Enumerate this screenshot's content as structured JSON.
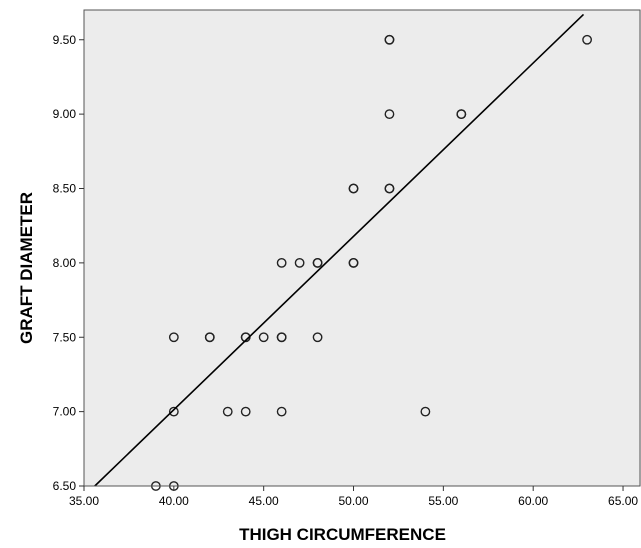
{
  "chart_data": {
    "type": "scatter",
    "title": "",
    "xlabel": "THIGH CIRCUMFERENCE",
    "ylabel": "GRAFT DIAMETER",
    "xlim": [
      35,
      66
    ],
    "ylim": [
      6.5,
      9.7
    ],
    "x_ticks": [
      "35.00",
      "40.00",
      "45.00",
      "50.00",
      "55.00",
      "60.00",
      "65.00"
    ],
    "x_tick_values": [
      35,
      40,
      45,
      50,
      55,
      60,
      65
    ],
    "y_ticks": [
      "6.50",
      "7.00",
      "7.50",
      "8.00",
      "8.50",
      "9.00",
      "9.50"
    ],
    "y_tick_values": [
      6.5,
      7.0,
      7.5,
      8.0,
      8.5,
      9.0,
      9.5
    ],
    "grid": false,
    "legend": "none",
    "colors": {
      "plot_background": "#ececec",
      "marker": "#222222",
      "fit_line": "#000000"
    },
    "series": [
      {
        "points": [
          [
            39,
            6.5
          ],
          [
            40,
            6.5
          ],
          [
            40,
            7.0
          ],
          [
            43,
            7.0
          ],
          [
            44,
            7.0
          ],
          [
            46,
            7.0
          ],
          [
            54,
            7.0
          ],
          [
            40,
            7.5
          ],
          [
            42,
            7.5
          ],
          [
            42,
            7.5
          ],
          [
            44,
            7.5
          ],
          [
            44,
            7.5
          ],
          [
            45,
            7.5
          ],
          [
            46,
            7.5
          ],
          [
            46,
            7.5
          ],
          [
            48,
            7.5
          ],
          [
            46,
            8.0
          ],
          [
            47,
            8.0
          ],
          [
            48,
            8.0
          ],
          [
            48,
            8.0
          ],
          [
            50,
            8.0
          ],
          [
            50,
            8.0
          ],
          [
            50,
            8.5
          ],
          [
            50,
            8.5
          ],
          [
            52,
            8.5
          ],
          [
            52,
            8.5
          ],
          [
            52,
            9.0
          ],
          [
            56,
            9.0
          ],
          [
            56,
            9.0
          ],
          [
            52,
            9.5
          ],
          [
            52,
            9.5
          ],
          [
            63,
            9.5
          ]
        ]
      }
    ],
    "fit_line": {
      "x": [
        35.6,
        62.8
      ],
      "y": [
        6.5,
        9.67
      ]
    }
  }
}
